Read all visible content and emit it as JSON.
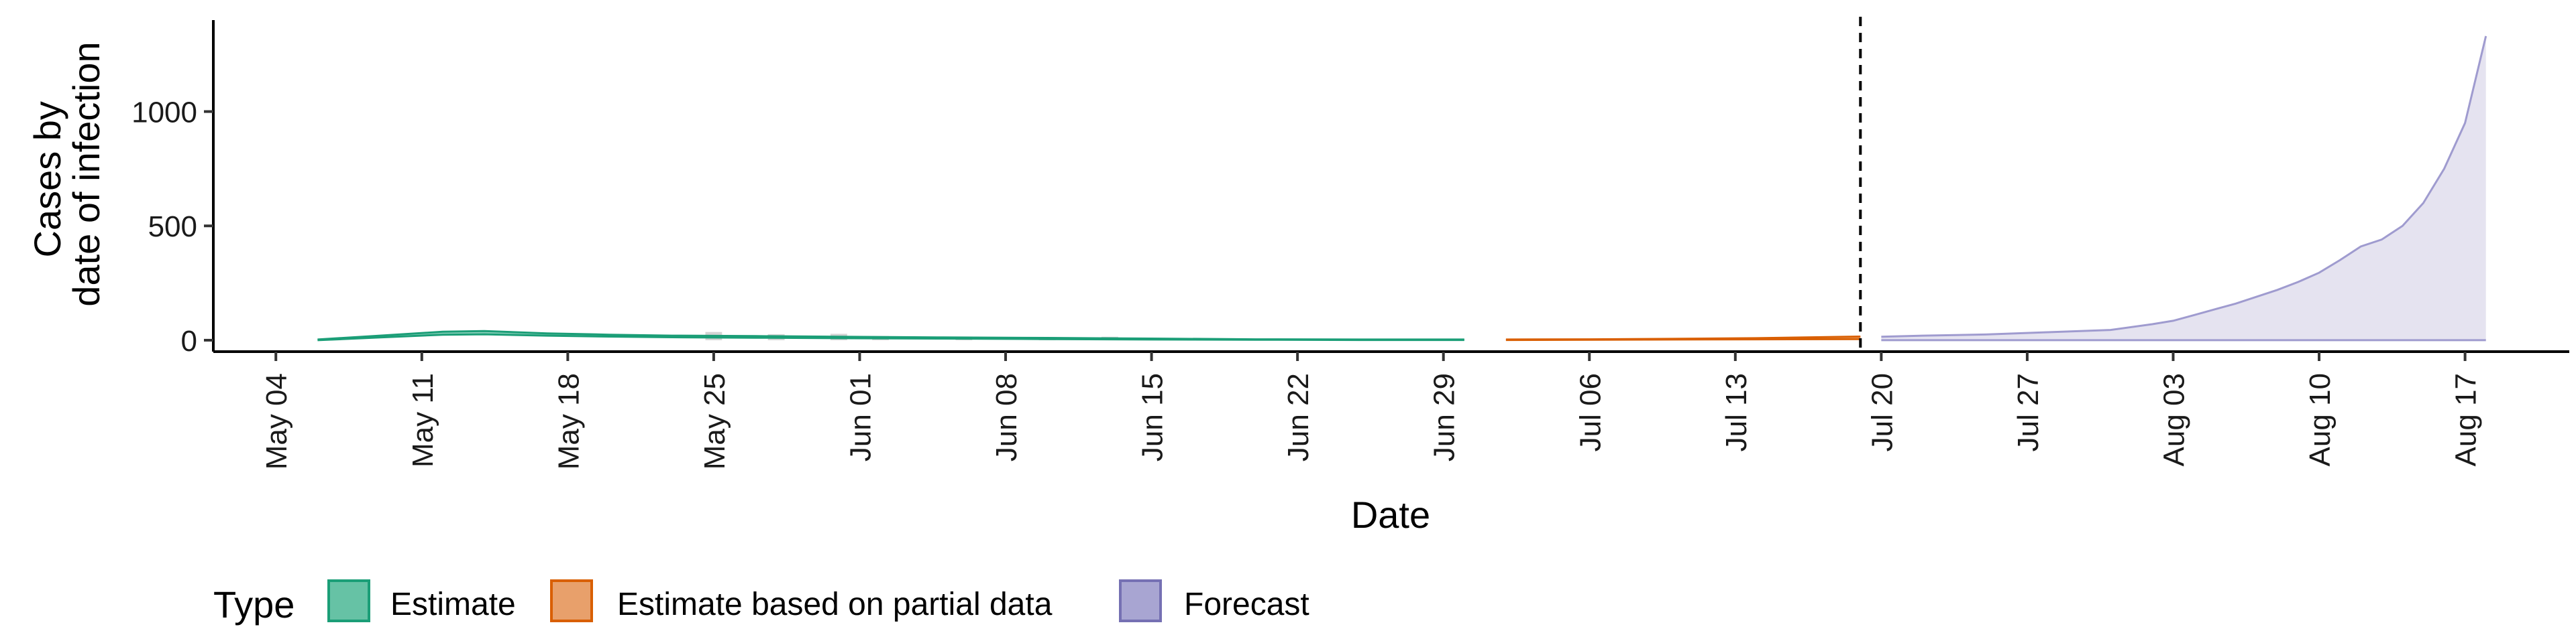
{
  "chart_data": {
    "type": "area",
    "xlabel": "Date",
    "ylabel_lines": [
      "Cases by",
      "date of infection"
    ],
    "x_range": [
      "2020-05-01",
      "2020-08-22"
    ],
    "ylim": [
      -50,
      1400
    ],
    "y_ticks": [
      0,
      500,
      1000
    ],
    "x_ticks": [
      {
        "date": "2020-05-04",
        "label": "May 04"
      },
      {
        "date": "2020-05-11",
        "label": "May 11"
      },
      {
        "date": "2020-05-18",
        "label": "May 18"
      },
      {
        "date": "2020-05-25",
        "label": "May 25"
      },
      {
        "date": "2020-06-01",
        "label": "Jun 01"
      },
      {
        "date": "2020-06-08",
        "label": "Jun 08"
      },
      {
        "date": "2020-06-15",
        "label": "Jun 15"
      },
      {
        "date": "2020-06-22",
        "label": "Jun 22"
      },
      {
        "date": "2020-06-29",
        "label": "Jun 29"
      },
      {
        "date": "2020-07-06",
        "label": "Jul 06"
      },
      {
        "date": "2020-07-13",
        "label": "Jul 13"
      },
      {
        "date": "2020-07-20",
        "label": "Jul 20"
      },
      {
        "date": "2020-07-27",
        "label": "Jul 27"
      },
      {
        "date": "2020-08-03",
        "label": "Aug 03"
      },
      {
        "date": "2020-08-10",
        "label": "Aug 10"
      },
      {
        "date": "2020-08-17",
        "label": "Aug 17"
      }
    ],
    "vline_date": "2020-07-19",
    "grid": false,
    "legend_position": "bottom-left",
    "legend": {
      "title": "Type",
      "items": [
        {
          "label": "Estimate",
          "fill": "#66c2a5",
          "stroke": "#1b9e77"
        },
        {
          "label": "Estimate based on partial data",
          "fill": "#e8a06b",
          "stroke": "#d95f02"
        },
        {
          "label": "Forecast",
          "fill": "#a8a5d2",
          "stroke": "#7570b3"
        }
      ]
    },
    "series": [
      {
        "type": "Estimate",
        "color": "#1b9e77",
        "fill": "#66c2a5",
        "points": [
          {
            "x": "2020-05-06",
            "lo": 0,
            "hi": 3
          },
          {
            "x": "2020-05-09",
            "lo": 12,
            "hi": 20
          },
          {
            "x": "2020-05-12",
            "lo": 24,
            "hi": 37
          },
          {
            "x": "2020-05-14",
            "lo": 26,
            "hi": 40
          },
          {
            "x": "2020-05-17",
            "lo": 20,
            "hi": 30
          },
          {
            "x": "2020-05-20",
            "lo": 16,
            "hi": 24
          },
          {
            "x": "2020-05-23",
            "lo": 13,
            "hi": 20
          },
          {
            "x": "2020-05-27",
            "lo": 11,
            "hi": 18
          },
          {
            "x": "2020-05-31",
            "lo": 9,
            "hi": 15
          },
          {
            "x": "2020-06-05",
            "lo": 7,
            "hi": 12
          },
          {
            "x": "2020-06-10",
            "lo": 5,
            "hi": 10
          },
          {
            "x": "2020-06-15",
            "lo": 3,
            "hi": 7
          },
          {
            "x": "2020-06-20",
            "lo": 2,
            "hi": 4
          },
          {
            "x": "2020-06-25",
            "lo": 1,
            "hi": 3
          },
          {
            "x": "2020-06-30",
            "lo": 1,
            "hi": 3
          }
        ]
      },
      {
        "type": "Estimate based on partial data",
        "color": "#d95f02",
        "fill": "#e8a06b",
        "points": [
          {
            "x": "2020-07-02",
            "lo": 1,
            "hi": 3
          },
          {
            "x": "2020-07-06",
            "lo": 2,
            "hi": 4
          },
          {
            "x": "2020-07-10",
            "lo": 3,
            "hi": 6
          },
          {
            "x": "2020-07-14",
            "lo": 4,
            "hi": 9
          },
          {
            "x": "2020-07-19",
            "lo": 5,
            "hi": 16
          }
        ]
      },
      {
        "type": "Forecast",
        "color": "#9f9bcf",
        "fill": "#dcdaeb",
        "points": [
          {
            "x": "2020-07-20",
            "lo": 0,
            "hi": 15
          },
          {
            "x": "2020-07-22",
            "lo": 0,
            "hi": 20
          },
          {
            "x": "2020-07-25",
            "lo": 0,
            "hi": 25
          },
          {
            "x": "2020-07-28",
            "lo": 0,
            "hi": 35
          },
          {
            "x": "2020-07-31",
            "lo": 0,
            "hi": 45
          },
          {
            "x": "2020-08-02",
            "lo": 0,
            "hi": 70
          },
          {
            "x": "2020-08-03",
            "lo": 0,
            "hi": 85
          },
          {
            "x": "2020-08-04",
            "lo": 0,
            "hi": 110
          },
          {
            "x": "2020-08-05",
            "lo": 0,
            "hi": 135
          },
          {
            "x": "2020-08-06",
            "lo": 0,
            "hi": 160
          },
          {
            "x": "2020-08-07",
            "lo": 0,
            "hi": 190
          },
          {
            "x": "2020-08-08",
            "lo": 0,
            "hi": 220
          },
          {
            "x": "2020-08-09",
            "lo": 0,
            "hi": 255
          },
          {
            "x": "2020-08-10",
            "lo": 0,
            "hi": 295
          },
          {
            "x": "2020-08-11",
            "lo": 0,
            "hi": 350
          },
          {
            "x": "2020-08-12",
            "lo": 0,
            "hi": 410
          },
          {
            "x": "2020-08-13",
            "lo": 0,
            "hi": 440
          },
          {
            "x": "2020-08-14",
            "lo": 0,
            "hi": 500
          },
          {
            "x": "2020-08-15",
            "lo": 0,
            "hi": 600
          },
          {
            "x": "2020-08-16",
            "lo": 0,
            "hi": 750
          },
          {
            "x": "2020-08-17",
            "lo": 0,
            "hi": 950
          },
          {
            "x": "2020-08-18",
            "lo": 0,
            "hi": 1330
          }
        ]
      }
    ],
    "observed_bars": [
      {
        "x": "2020-05-25",
        "value": 36
      },
      {
        "x": "2020-05-28",
        "value": 26
      },
      {
        "x": "2020-05-31",
        "value": 28
      },
      {
        "x": "2020-06-02",
        "value": 18
      },
      {
        "x": "2020-06-06",
        "value": 16
      },
      {
        "x": "2020-06-10",
        "value": 12
      },
      {
        "x": "2020-06-13",
        "value": 15
      },
      {
        "x": "2020-07-13",
        "value": 10
      }
    ]
  }
}
